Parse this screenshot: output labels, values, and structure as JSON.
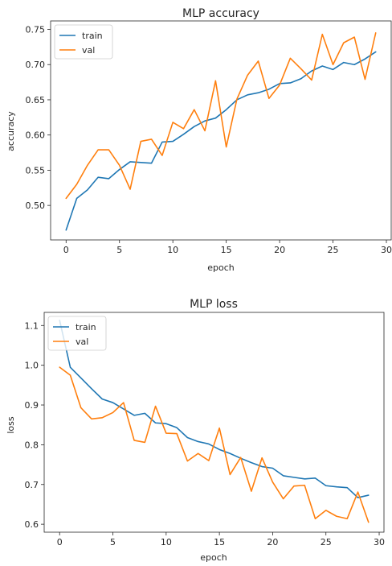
{
  "colors": {
    "train": "#1f77b4",
    "val": "#ff7f0e",
    "axis": "#262626"
  },
  "chart_data": [
    {
      "type": "line",
      "title": "MLP accuracy",
      "xlabel": "epoch",
      "ylabel": "accuracy",
      "xlim": [
        -1.45,
        30.45
      ],
      "ylim": [
        0.451,
        0.762
      ],
      "xticks": [
        0,
        5,
        10,
        15,
        20,
        25,
        30
      ],
      "xtick_labels": [
        "0",
        "5",
        "10",
        "15",
        "20",
        "25",
        "30"
      ],
      "yticks": [
        0.5,
        0.55,
        0.6,
        0.65,
        0.7,
        0.75
      ],
      "ytick_labels": [
        "0.50",
        "0.55",
        "0.60",
        "0.65",
        "0.70",
        "0.75"
      ],
      "legend": {
        "position": "upper-left",
        "labels": [
          "train",
          "val"
        ]
      },
      "grid": false,
      "x": [
        0,
        1,
        2,
        3,
        4,
        5,
        6,
        7,
        8,
        9,
        10,
        11,
        12,
        13,
        14,
        15,
        16,
        17,
        18,
        19,
        20,
        21,
        22,
        23,
        24,
        25,
        26,
        27,
        28,
        29
      ],
      "series": [
        {
          "name": "train",
          "values": [
            0.465,
            0.51,
            0.522,
            0.54,
            0.538,
            0.551,
            0.562,
            0.561,
            0.56,
            0.59,
            0.591,
            0.601,
            0.612,
            0.62,
            0.624,
            0.636,
            0.65,
            0.657,
            0.66,
            0.665,
            0.673,
            0.674,
            0.68,
            0.691,
            0.698,
            0.693,
            0.703,
            0.7,
            0.708,
            0.718
          ]
        },
        {
          "name": "val",
          "values": [
            0.51,
            0.53,
            0.557,
            0.579,
            0.579,
            0.557,
            0.523,
            0.591,
            0.594,
            0.571,
            0.618,
            0.609,
            0.636,
            0.606,
            0.677,
            0.583,
            0.651,
            0.685,
            0.705,
            0.652,
            0.671,
            0.709,
            0.694,
            0.678,
            0.743,
            0.7,
            0.731,
            0.739,
            0.679,
            0.745
          ]
        }
      ]
    },
    {
      "type": "line",
      "title": "MLP loss",
      "xlabel": "epoch",
      "ylabel": "loss",
      "xlim": [
        -1.45,
        30.45
      ],
      "ylim": [
        0.58,
        1.133
      ],
      "xticks": [
        0,
        5,
        10,
        15,
        20,
        25,
        30
      ],
      "xtick_labels": [
        "0",
        "5",
        "10",
        "15",
        "20",
        "25",
        "30"
      ],
      "yticks": [
        0.6,
        0.7,
        0.8,
        0.9,
        1.0,
        1.1
      ],
      "ytick_labels": [
        "0.6",
        "0.7",
        "0.8",
        "0.9",
        "1.0",
        "1.1"
      ],
      "legend": {
        "position": "upper-left",
        "labels": [
          "train",
          "val"
        ]
      },
      "grid": false,
      "x": [
        0,
        1,
        2,
        3,
        4,
        5,
        6,
        7,
        8,
        9,
        10,
        11,
        12,
        13,
        14,
        15,
        16,
        17,
        18,
        19,
        20,
        21,
        22,
        23,
        24,
        25,
        26,
        27,
        28,
        29
      ],
      "series": [
        {
          "name": "train",
          "values": [
            1.113,
            0.995,
            0.968,
            0.941,
            0.915,
            0.906,
            0.89,
            0.874,
            0.879,
            0.855,
            0.853,
            0.843,
            0.818,
            0.808,
            0.802,
            0.788,
            0.778,
            0.766,
            0.755,
            0.745,
            0.741,
            0.722,
            0.718,
            0.714,
            0.716,
            0.697,
            0.694,
            0.692,
            0.667,
            0.673
          ]
        },
        {
          "name": "val",
          "values": [
            0.995,
            0.975,
            0.893,
            0.865,
            0.868,
            0.881,
            0.906,
            0.811,
            0.806,
            0.897,
            0.829,
            0.828,
            0.759,
            0.778,
            0.76,
            0.842,
            0.725,
            0.768,
            0.683,
            0.767,
            0.706,
            0.664,
            0.696,
            0.698,
            0.614,
            0.635,
            0.62,
            0.614,
            0.681,
            0.605
          ]
        }
      ]
    }
  ]
}
